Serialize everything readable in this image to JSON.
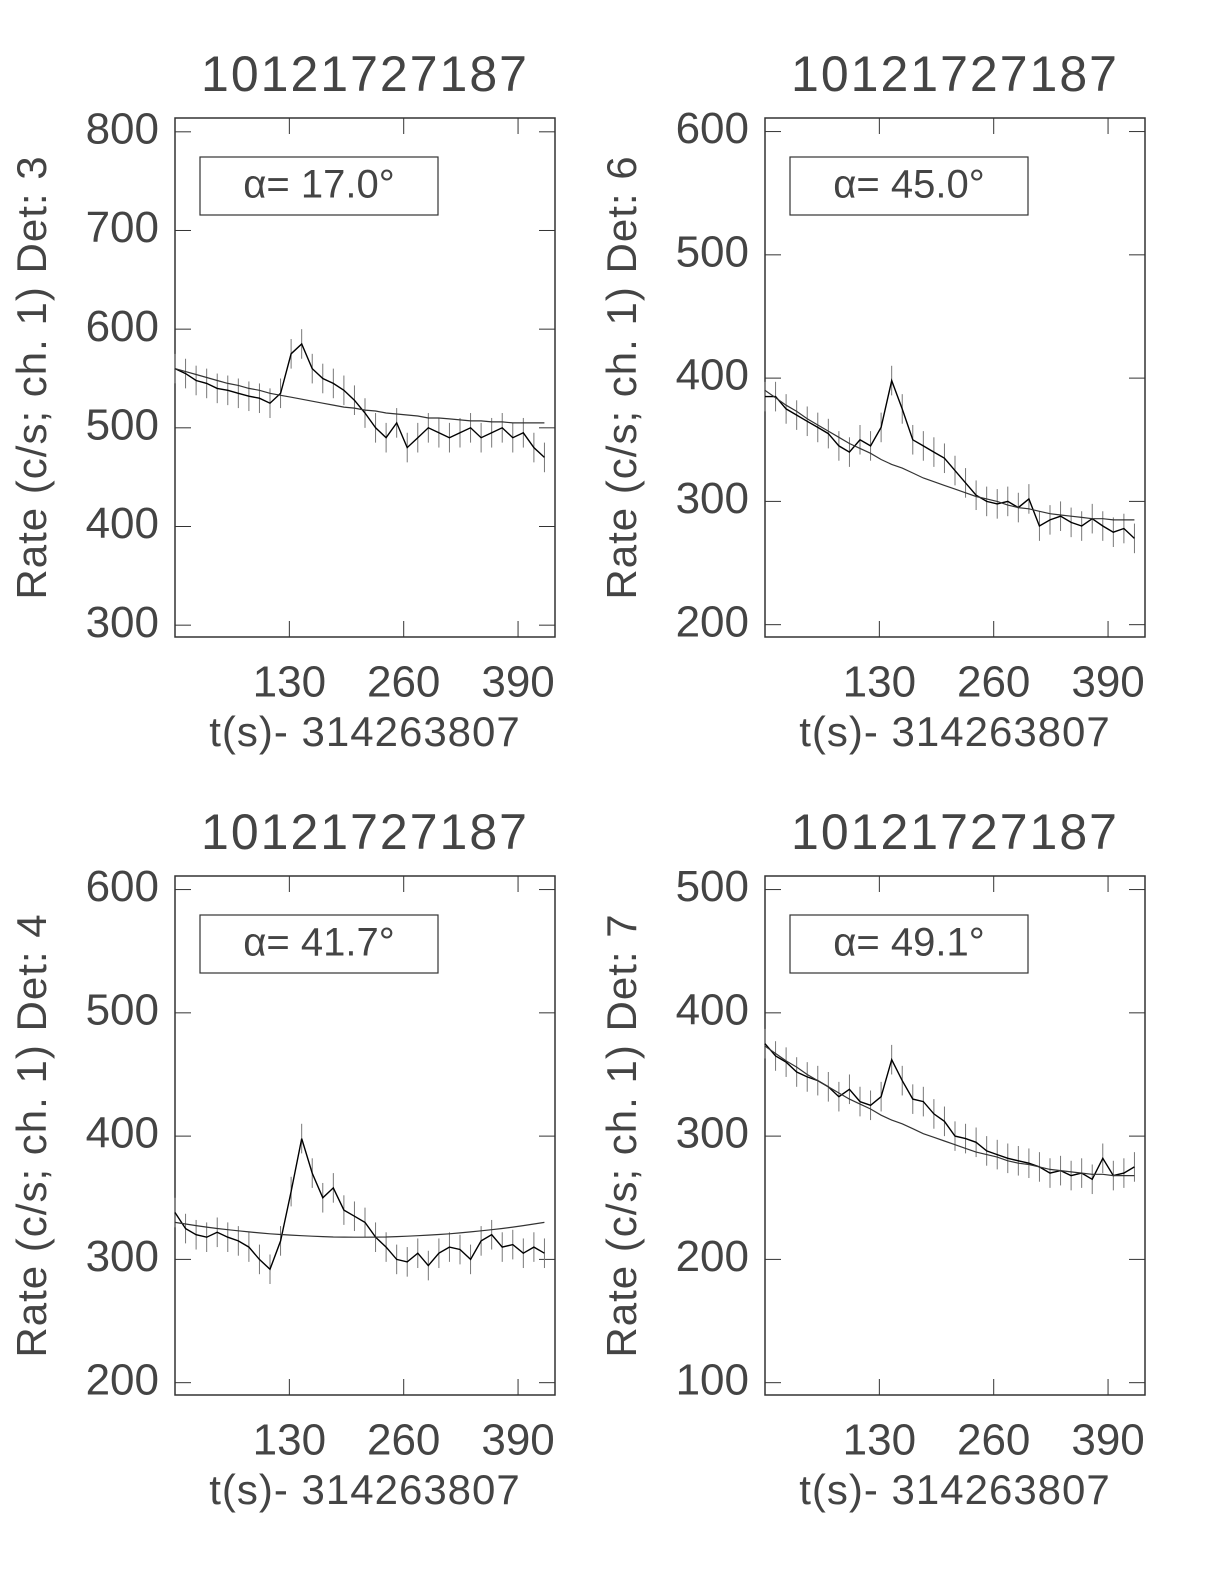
{
  "chart_data": [
    {
      "type": "line",
      "title": "10121727187",
      "xlabel": "t(s)- 314263807",
      "ylabel": "Rate (c/s; ch. 1) Det: 3",
      "annotation": "α= 17.0°",
      "x": [
        0,
        12,
        24,
        36,
        48,
        60,
        72,
        84,
        96,
        108,
        120,
        132,
        144,
        156,
        168,
        180,
        192,
        204,
        216,
        228,
        240,
        252,
        264,
        276,
        288,
        300,
        312,
        324,
        336,
        348,
        360,
        372,
        384,
        396,
        408,
        420
      ],
      "xlim": [
        0,
        432
      ],
      "xticks": [
        130,
        260,
        390
      ],
      "ylim": [
        288,
        814
      ],
      "yticks": [
        300,
        400,
        500,
        600,
        700,
        800
      ],
      "series": [
        {
          "color": "#000000",
          "yerr": 15,
          "values": [
            560,
            555,
            548,
            545,
            540,
            538,
            535,
            532,
            530,
            525,
            535,
            575,
            585,
            560,
            550,
            545,
            538,
            528,
            515,
            500,
            490,
            505,
            480,
            490,
            500,
            495,
            490,
            495,
            500,
            490,
            495,
            500,
            490,
            495,
            480,
            470
          ]
        },
        {
          "color": "#333333",
          "values": [
            560,
            557,
            554,
            551,
            548,
            545,
            543,
            540,
            538,
            535,
            533,
            531,
            529,
            527,
            525,
            523,
            521,
            520,
            518,
            517,
            515,
            514,
            513,
            512,
            510,
            510,
            509,
            508,
            507,
            507,
            506,
            506,
            505,
            505,
            505,
            505
          ]
        }
      ]
    },
    {
      "type": "line",
      "title": "10121727187",
      "xlabel": "t(s)- 314263807",
      "ylabel": "Rate (c/s; ch. 1) Det: 6",
      "annotation": "α= 45.0°",
      "x": [
        0,
        12,
        24,
        36,
        48,
        60,
        72,
        84,
        96,
        108,
        120,
        132,
        144,
        156,
        168,
        180,
        192,
        204,
        216,
        228,
        240,
        252,
        264,
        276,
        288,
        300,
        312,
        324,
        336,
        348,
        360,
        372,
        384,
        396,
        408,
        420
      ],
      "xlim": [
        0,
        432
      ],
      "xticks": [
        130,
        260,
        390
      ],
      "ylim": [
        190,
        611
      ],
      "yticks": [
        200,
        300,
        400,
        500,
        600
      ],
      "series": [
        {
          "color": "#000000",
          "yerr": 12,
          "values": [
            385,
            385,
            375,
            370,
            365,
            360,
            355,
            345,
            340,
            350,
            345,
            360,
            398,
            375,
            350,
            345,
            340,
            335,
            325,
            315,
            305,
            300,
            298,
            300,
            295,
            302,
            280,
            285,
            288,
            283,
            280,
            286,
            280,
            275,
            278,
            270
          ]
        },
        {
          "color": "#333333",
          "values": [
            390,
            384,
            378,
            373,
            367,
            362,
            357,
            352,
            347,
            343,
            339,
            334,
            330,
            327,
            323,
            319,
            316,
            313,
            310,
            307,
            304,
            302,
            300,
            297,
            295,
            294,
            292,
            290,
            289,
            288,
            287,
            286,
            286,
            285,
            285,
            285
          ]
        }
      ]
    },
    {
      "type": "line",
      "title": "10121727187",
      "xlabel": "t(s)- 314263807",
      "ylabel": "Rate (c/s; ch. 1) Det: 4",
      "annotation": "α= 41.7°",
      "x": [
        0,
        12,
        24,
        36,
        48,
        60,
        72,
        84,
        96,
        108,
        120,
        132,
        144,
        156,
        168,
        180,
        192,
        204,
        216,
        228,
        240,
        252,
        264,
        276,
        288,
        300,
        312,
        324,
        336,
        348,
        360,
        372,
        384,
        396,
        408,
        420
      ],
      "xlim": [
        0,
        432
      ],
      "xticks": [
        130,
        260,
        390
      ],
      "ylim": [
        190,
        611
      ],
      "yticks": [
        200,
        300,
        400,
        500,
        600
      ],
      "series": [
        {
          "color": "#000000",
          "yerr": 12,
          "values": [
            338,
            325,
            320,
            318,
            322,
            318,
            315,
            310,
            300,
            292,
            315,
            355,
            398,
            370,
            350,
            358,
            340,
            335,
            330,
            318,
            310,
            300,
            298,
            305,
            295,
            305,
            310,
            308,
            300,
            315,
            320,
            310,
            312,
            305,
            310,
            305
          ]
        },
        {
          "color": "#333333",
          "values": [
            330,
            328.7,
            327.4,
            326.2,
            325.1,
            324.1,
            323.2,
            322.3,
            321.5,
            320.8,
            320.2,
            319.7,
            319.2,
            318.8,
            318.5,
            318.2,
            318.1,
            318,
            318,
            318.1,
            318.2,
            318.5,
            318.8,
            319.2,
            319.7,
            320.2,
            320.8,
            321.5,
            322.3,
            323.2,
            324.1,
            325.1,
            326.2,
            327.4,
            328.7,
            330
          ]
        }
      ]
    },
    {
      "type": "line",
      "title": "10121727187",
      "xlabel": "t(s)- 314263807",
      "ylabel": "Rate (c/s; ch. 1) Det: 7",
      "annotation": "α= 49.1°",
      "x": [
        0,
        12,
        24,
        36,
        48,
        60,
        72,
        84,
        96,
        108,
        120,
        132,
        144,
        156,
        168,
        180,
        192,
        204,
        216,
        228,
        240,
        252,
        264,
        276,
        288,
        300,
        312,
        324,
        336,
        348,
        360,
        372,
        384,
        396,
        408,
        420
      ],
      "xlim": [
        0,
        432
      ],
      "xticks": [
        130,
        260,
        390
      ],
      "ylim": [
        90,
        511
      ],
      "yticks": [
        100,
        200,
        300,
        400,
        500
      ],
      "series": [
        {
          "color": "#000000",
          "yerr": 12,
          "values": [
            375,
            365,
            360,
            352,
            348,
            345,
            340,
            332,
            338,
            328,
            325,
            332,
            362,
            345,
            330,
            328,
            318,
            312,
            300,
            298,
            295,
            288,
            285,
            282,
            280,
            278,
            275,
            270,
            272,
            268,
            270,
            265,
            282,
            268,
            270,
            275
          ]
        },
        {
          "color": "#333333",
          "values": [
            373,
            367,
            361,
            356,
            350,
            345,
            340,
            335,
            330,
            326,
            322,
            317,
            313,
            310,
            306,
            302,
            299,
            296,
            293,
            290,
            287,
            285,
            283,
            280,
            278,
            277,
            275,
            273,
            272,
            271,
            270,
            269,
            269,
            268,
            268,
            268
          ]
        }
      ]
    }
  ]
}
